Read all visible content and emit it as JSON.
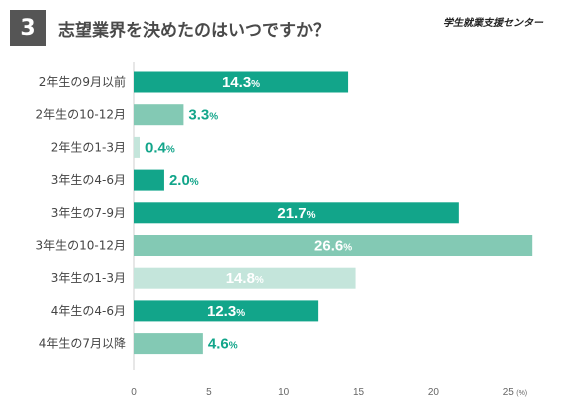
{
  "header": {
    "question_number": "3",
    "title": "志望業界を決めたのはいつですか？",
    "brand": "学生就業支援センター"
  },
  "colors": {
    "dark": "#12a58a",
    "mid": "#83c9b4",
    "light": "#c4e5db",
    "text_dark": "#3a3a3a",
    "text_green": "#12a58a"
  },
  "chart_data": {
    "type": "bar",
    "orientation": "horizontal",
    "title": "志望業界を決めたのはいつですか？",
    "categories": [
      "2年生の9月以前",
      "2年生の10-12月",
      "2年生の1-3月",
      "3年生の4-6月",
      "3年生の7-9月",
      "3年生の10-12月",
      "3年生の1-3月",
      "4年生の4-6月",
      "4年生の7月以降"
    ],
    "values": [
      14.3,
      3.3,
      0.4,
      2.0,
      21.7,
      26.6,
      14.8,
      12.3,
      4.6
    ],
    "value_labels": [
      "14.3",
      "3.3",
      "0.4",
      "2.0",
      "21.7",
      "26.6",
      "14.8",
      "12.3",
      "4.6"
    ],
    "value_unit": "%",
    "bar_tones": [
      "dark",
      "mid",
      "light",
      "dark",
      "dark",
      "mid",
      "light",
      "dark",
      "mid"
    ],
    "xlim": [
      0,
      27
    ],
    "ticks": [
      0,
      5,
      10,
      15,
      20,
      25
    ],
    "tick_labels": [
      "0",
      "5",
      "10",
      "15",
      "20",
      "25"
    ],
    "axis_unit": "(%)",
    "grid": false,
    "legend": "none"
  }
}
